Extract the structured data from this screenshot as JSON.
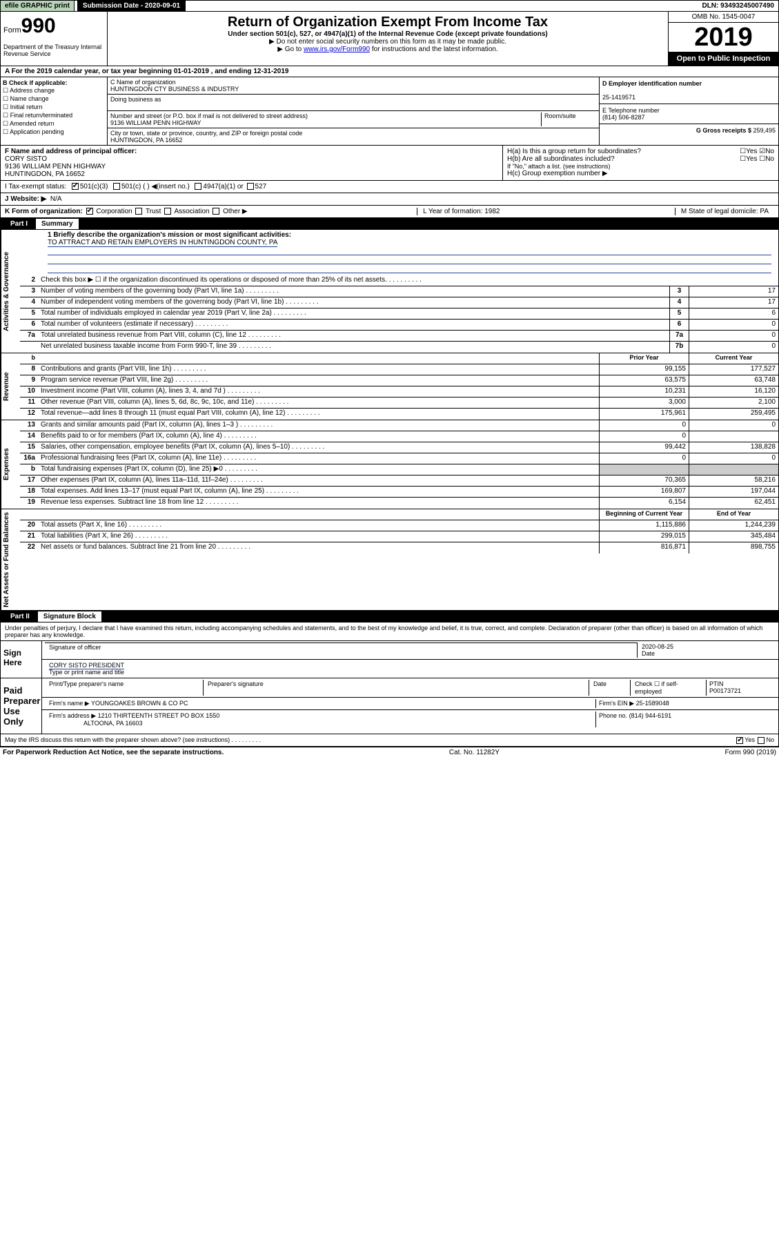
{
  "topbar": {
    "efile": "efile GRAPHIC print",
    "submission": "Submission Date - 2020-09-01",
    "dln": "DLN: 93493245007490"
  },
  "header": {
    "form_word": "Form",
    "form_num": "990",
    "dept": "Department of the Treasury Internal Revenue Service",
    "title": "Return of Organization Exempt From Income Tax",
    "subtitle1": "Under section 501(c), 527, or 4947(a)(1) of the Internal Revenue Code (except private foundations)",
    "subtitle2": "▶ Do not enter social security numbers on this form as it may be made public.",
    "subtitle3_pre": "▶ Go to ",
    "subtitle3_link": "www.irs.gov/Form990",
    "subtitle3_post": " for instructions and the latest information.",
    "omb": "OMB No. 1545-0047",
    "year": "2019",
    "open": "Open to Public Inspection"
  },
  "row_a": "A For the 2019 calendar year, or tax year beginning 01-01-2019   , and ending 12-31-2019",
  "col_b": {
    "label": "B Check if applicable:",
    "opts": [
      "Address change",
      "Name change",
      "Initial return",
      "Final return/terminated",
      "Amended return",
      "Application pending"
    ]
  },
  "col_c": {
    "name_label": "C Name of organization",
    "name": "HUNTINGDON CTY BUSINESS & INDUSTRY",
    "dba_label": "Doing business as",
    "addr_label": "Number and street (or P.O. box if mail is not delivered to street address)",
    "room_label": "Room/suite",
    "addr": "9136 WILLIAM PENN HIGHWAY",
    "city_label": "City or town, state or province, country, and ZIP or foreign postal code",
    "city": "HUNTINGDON, PA  16652"
  },
  "col_de": {
    "d_label": "D Employer identification number",
    "d_val": "25-1419571",
    "e_label": "E Telephone number",
    "e_val": "(814) 506-8287",
    "g_label": "G Gross receipts $ ",
    "g_val": "259,495"
  },
  "f": {
    "label": "F  Name and address of principal officer:",
    "name": "CORY SISTO",
    "addr1": "9136 WILLIAM PENN HIGHWAY",
    "addr2": "HUNTINGDON, PA  16652"
  },
  "h": {
    "a": "H(a)  Is this a group return for subordinates?",
    "b": "H(b)  Are all subordinates included?",
    "b_note": "If \"No,\" attach a list. (see instructions)",
    "c": "H(c)  Group exemption number ▶",
    "yes": "Yes",
    "no": "No"
  },
  "i": {
    "label": "I   Tax-exempt status:",
    "o1": "501(c)(3)",
    "o2": "501(c) (  ) ◀(insert no.)",
    "o3": "4947(a)(1) or",
    "o4": "527"
  },
  "j": {
    "label": "J   Website: ▶",
    "val": "N/A"
  },
  "k": {
    "label": "K Form of organization:",
    "opts": [
      "Corporation",
      "Trust",
      "Association",
      "Other ▶"
    ],
    "l": "L Year of formation: 1982",
    "m": "M State of legal domicile: PA"
  },
  "part1": {
    "num": "Part I",
    "title": "Summary"
  },
  "mission": {
    "q": "1   Briefly describe the organization's mission or most significant activities:",
    "a": "TO ATTRACT AND RETAIN EMPLOYERS IN HUNTINGDON COUNTY, PA"
  },
  "governance": [
    {
      "n": "2",
      "d": "Check this box ▶ ☐  if the organization discontinued its operations or disposed of more than 25% of its net assets."
    },
    {
      "n": "3",
      "d": "Number of voting members of the governing body (Part VI, line 1a)",
      "bn": "3",
      "v": "17"
    },
    {
      "n": "4",
      "d": "Number of independent voting members of the governing body (Part VI, line 1b)",
      "bn": "4",
      "v": "17"
    },
    {
      "n": "5",
      "d": "Total number of individuals employed in calendar year 2019 (Part V, line 2a)",
      "bn": "5",
      "v": "6"
    },
    {
      "n": "6",
      "d": "Total number of volunteers (estimate if necessary)",
      "bn": "6",
      "v": "0"
    },
    {
      "n": "7a",
      "d": "Total unrelated business revenue from Part VIII, column (C), line 12",
      "bn": "7a",
      "v": "0"
    },
    {
      "n": "",
      "d": "Net unrelated business taxable income from Form 990-T, line 39",
      "bn": "7b",
      "v": "0"
    }
  ],
  "rev_hdr": {
    "prior": "Prior Year",
    "current": "Current Year"
  },
  "revenue": [
    {
      "n": "8",
      "d": "Contributions and grants (Part VIII, line 1h)",
      "p": "99,155",
      "c": "177,527"
    },
    {
      "n": "9",
      "d": "Program service revenue (Part VIII, line 2g)",
      "p": "63,575",
      "c": "63,748"
    },
    {
      "n": "10",
      "d": "Investment income (Part VIII, column (A), lines 3, 4, and 7d )",
      "p": "10,231",
      "c": "16,120"
    },
    {
      "n": "11",
      "d": "Other revenue (Part VIII, column (A), lines 5, 6d, 8c, 9c, 10c, and 11e)",
      "p": "3,000",
      "c": "2,100"
    },
    {
      "n": "12",
      "d": "Total revenue—add lines 8 through 11 (must equal Part VIII, column (A), line 12)",
      "p": "175,961",
      "c": "259,495"
    }
  ],
  "expenses": [
    {
      "n": "13",
      "d": "Grants and similar amounts paid (Part IX, column (A), lines 1–3 )",
      "p": "0",
      "c": "0"
    },
    {
      "n": "14",
      "d": "Benefits paid to or for members (Part IX, column (A), line 4)",
      "p": "0",
      "c": ""
    },
    {
      "n": "15",
      "d": "Salaries, other compensation, employee benefits (Part IX, column (A), lines 5–10)",
      "p": "99,442",
      "c": "138,828"
    },
    {
      "n": "16a",
      "d": "Professional fundraising fees (Part IX, column (A), line 11e)",
      "p": "0",
      "c": "0"
    },
    {
      "n": "b",
      "d": "Total fundraising expenses (Part IX, column (D), line 25) ▶0",
      "p": "",
      "c": "",
      "grey": true
    },
    {
      "n": "17",
      "d": "Other expenses (Part IX, column (A), lines 11a–11d, 11f–24e)",
      "p": "70,365",
      "c": "58,216"
    },
    {
      "n": "18",
      "d": "Total expenses. Add lines 13–17 (must equal Part IX, column (A), line 25)",
      "p": "169,807",
      "c": "197,044"
    },
    {
      "n": "19",
      "d": "Revenue less expenses. Subtract line 18 from line 12",
      "p": "6,154",
      "c": "62,451"
    }
  ],
  "net_hdr": {
    "prior": "Beginning of Current Year",
    "current": "End of Year"
  },
  "net": [
    {
      "n": "20",
      "d": "Total assets (Part X, line 16)",
      "p": "1,115,886",
      "c": "1,244,239"
    },
    {
      "n": "21",
      "d": "Total liabilities (Part X, line 26)",
      "p": "299,015",
      "c": "345,484"
    },
    {
      "n": "22",
      "d": "Net assets or fund balances. Subtract line 21 from line 20",
      "p": "816,871",
      "c": "898,755"
    }
  ],
  "part2": {
    "num": "Part II",
    "title": "Signature Block"
  },
  "perjury": "Under penalties of perjury, I declare that I have examined this return, including accompanying schedules and statements, and to the best of my knowledge and belief, it is true, correct, and complete. Declaration of preparer (other than officer) is based on all information of which preparer has any knowledge.",
  "sign": {
    "label": "Sign Here",
    "sig": "Signature of officer",
    "date_lbl": "Date",
    "date": "2020-08-25",
    "name": "CORY SISTO  PRESIDENT",
    "name_lbl": "Type or print name and title"
  },
  "paid": {
    "label": "Paid Preparer Use Only",
    "h1": "Print/Type preparer's name",
    "h2": "Preparer's signature",
    "h3": "Date",
    "h4a": "Check ☐ if self-employed",
    "h4b": "PTIN",
    "ptin": "P00173721",
    "firm_lbl": "Firm's name   ▶",
    "firm": "YOUNGOAKES BROWN & CO PC",
    "ein_lbl": "Firm's EIN ▶",
    "ein": "25-1589048",
    "addr_lbl": "Firm's address ▶",
    "addr1": "1210 THIRTEENTH STREET PO BOX 1550",
    "addr2": "ALTOONA, PA  16603",
    "phone_lbl": "Phone no.",
    "phone": "(814) 944-6191"
  },
  "discuss": "May the IRS discuss this return with the preparer shown above? (see instructions)",
  "footer": {
    "left": "For Paperwork Reduction Act Notice, see the separate instructions.",
    "mid": "Cat. No. 11282Y",
    "right": "Form 990 (2019)"
  },
  "vlabels": {
    "gov": "Activities & Governance",
    "rev": "Revenue",
    "exp": "Expenses",
    "net": "Net Assets or Fund Balances"
  },
  "colors": {
    "green": "#b8d4b8",
    "link": "#0000cc"
  }
}
